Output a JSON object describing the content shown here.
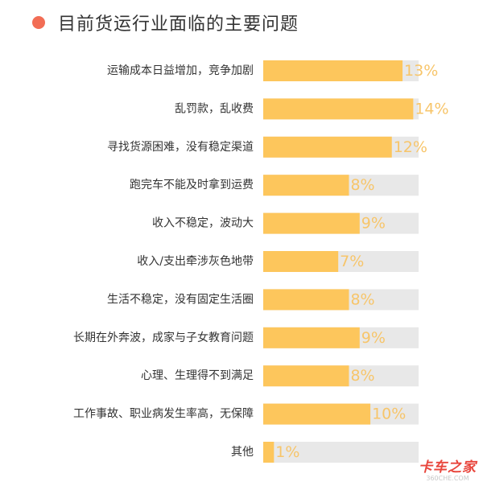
{
  "title": "目前货运行业面临的主要问题",
  "chart_data": {
    "type": "bar",
    "orientation": "horizontal",
    "categories": [
      "运输成本日益增加，竞争加剧",
      "乱罚款，乱收费",
      "寻找货源困难，没有稳定渠道",
      "跑完车不能及时拿到运费",
      "收入不稳定，波动大",
      "收入/支出牵涉灰色地带",
      "生活不稳定，没有固定生活圈",
      "长期在外奔波，成家与子女教育问题",
      "心理、生理得不到满足",
      "工作事故、职业病发生率高，无保障",
      "其他"
    ],
    "values": [
      13,
      14,
      12,
      8,
      9,
      7,
      8,
      9,
      8,
      10,
      1
    ],
    "value_labels": [
      "13%",
      "14%",
      "12%",
      "8%",
      "9%",
      "7%",
      "8%",
      "9%",
      "8%",
      "10%",
      "1%"
    ],
    "xlim": [
      0,
      14.5
    ],
    "grid": false,
    "legend": "none",
    "colors": {
      "bar": "#fdc65c",
      "track": "#e8e8e8",
      "value_label": "#f7c56a",
      "category_label": "#333333",
      "title_dot": "#f26d55"
    }
  },
  "watermark": {
    "main": "卡车之家",
    "sub": "360CHE.COM"
  }
}
